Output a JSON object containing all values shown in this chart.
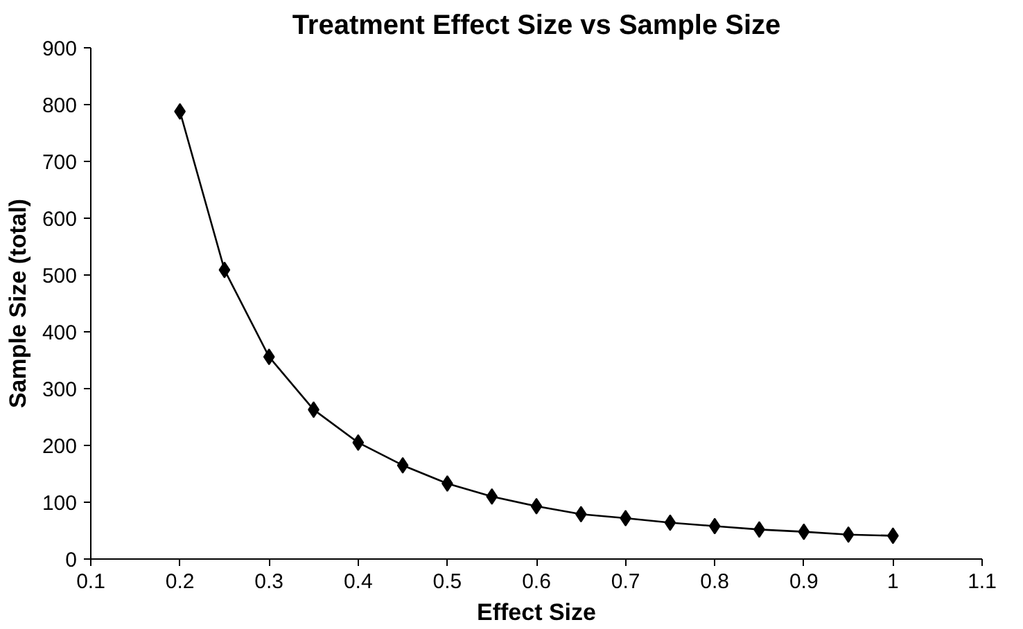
{
  "chart_data": {
    "type": "line",
    "title": "Treatment Effect Size vs Sample Size",
    "xlabel": "Effect Size",
    "ylabel": "Sample Size (total)",
    "x": [
      0.2,
      0.25,
      0.3,
      0.35,
      0.4,
      0.45,
      0.5,
      0.55,
      0.6,
      0.65,
      0.7,
      0.75,
      0.8,
      0.85,
      0.9,
      0.95,
      1.0
    ],
    "series": [
      {
        "color": "#000000",
        "values": [
          788,
          509,
          356,
          263,
          205,
          165,
          133,
          110,
          93,
          79,
          72,
          64,
          58,
          52,
          48,
          43,
          41
        ]
      }
    ],
    "xlim": [
      0.1,
      1.1
    ],
    "xticks": [
      0.1,
      0.2,
      0.3,
      0.4,
      0.5,
      0.6,
      0.7,
      0.8,
      0.9,
      1,
      1.1
    ],
    "ylim": [
      0,
      900
    ],
    "yticks": [
      0,
      100,
      200,
      300,
      400,
      500,
      600,
      700,
      800,
      900
    ],
    "grid": false,
    "marker": "diamond",
    "line_style": "solid"
  }
}
